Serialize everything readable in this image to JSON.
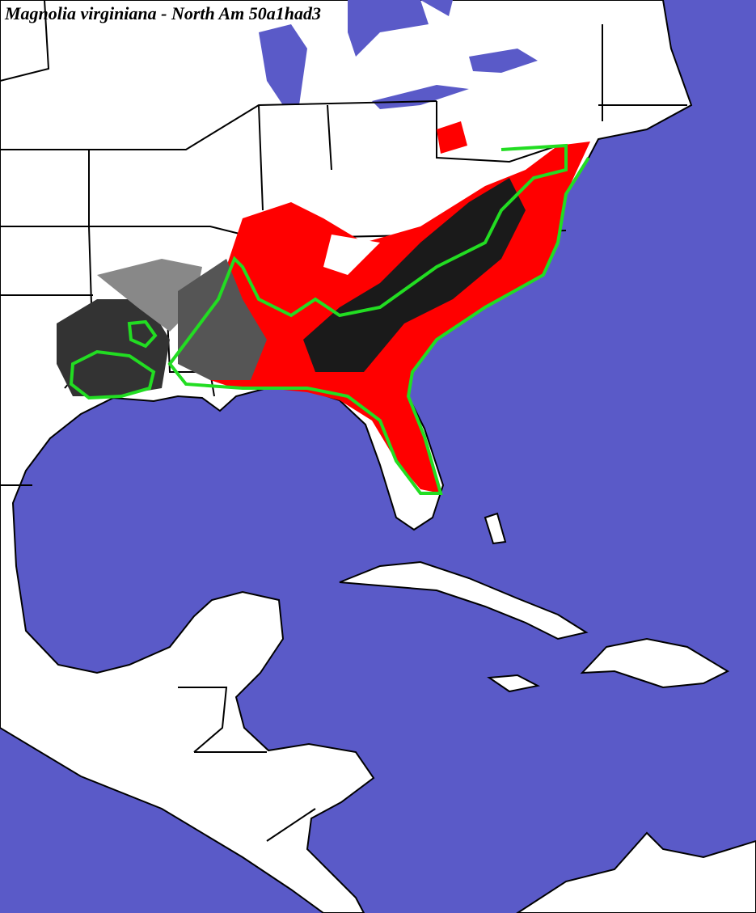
{
  "title": "Magnolia virginiana - North Am 50a1had3"
}
